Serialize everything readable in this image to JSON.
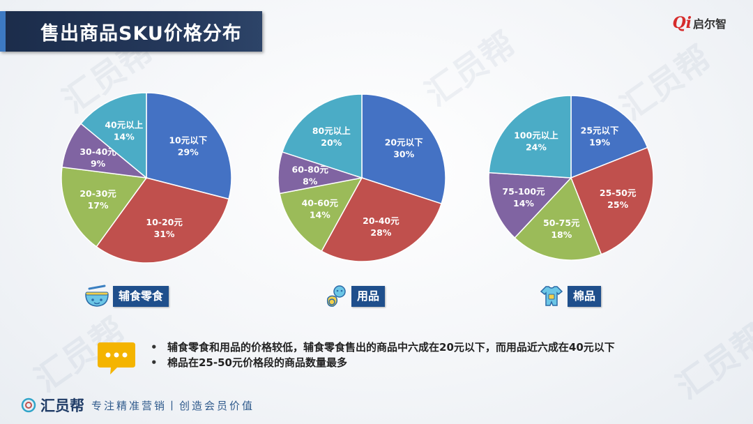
{
  "title": "售出商品SKU价格分布",
  "brand": {
    "mark": "Qi",
    "name": "启尔智"
  },
  "watermark": "汇员帮",
  "categories": [
    {
      "label": "辅食零食",
      "icon": "bowl-icon"
    },
    {
      "label": "用品",
      "icon": "pacifier-icon"
    },
    {
      "label": "棉品",
      "icon": "baby-clothes-icon"
    }
  ],
  "chart_data": [
    {
      "type": "pie",
      "title": "辅食零食",
      "slices": [
        {
          "label": "10元以下",
          "value": 29,
          "display": "29%",
          "color": "#4472c4"
        },
        {
          "label": "10-20元",
          "value": 31,
          "display": "31%",
          "color": "#c0504d"
        },
        {
          "label": "20-30元",
          "value": 17,
          "display": "17%",
          "color": "#9bbb59"
        },
        {
          "label": "30-40元",
          "value": 9,
          "display": "9%",
          "color": "#8064a2"
        },
        {
          "label": "40元以上",
          "value": 14,
          "display": "14%",
          "color": "#4bacc6"
        }
      ]
    },
    {
      "type": "pie",
      "title": "用品",
      "slices": [
        {
          "label": "20元以下",
          "value": 30,
          "display": "30%",
          "color": "#4472c4"
        },
        {
          "label": "20-40元",
          "value": 28,
          "display": "28%",
          "color": "#c0504d"
        },
        {
          "label": "40-60元",
          "value": 14,
          "display": "14%",
          "color": "#9bbb59"
        },
        {
          "label": "60-80元",
          "value": 8,
          "display": "8%",
          "color": "#8064a2"
        },
        {
          "label": "80元以上",
          "value": 20,
          "display": "20%",
          "color": "#4bacc6"
        }
      ]
    },
    {
      "type": "pie",
      "title": "棉品",
      "slices": [
        {
          "label": "25元以下",
          "value": 19,
          "display": "19%",
          "color": "#4472c4"
        },
        {
          "label": "25-50元",
          "value": 25,
          "display": "25%",
          "color": "#c0504d"
        },
        {
          "label": "50-75元",
          "value": 18,
          "display": "18%",
          "color": "#9bbb59"
        },
        {
          "label": "75-100元",
          "value": 14,
          "display": "14%",
          "color": "#8064a2"
        },
        {
          "label": "100元以上",
          "value": 24,
          "display": "24%",
          "color": "#4bacc6"
        }
      ]
    }
  ],
  "notes": [
    "辅食零食和用品的价格较低，辅食零食售出的商品中六成在20元以下，而用品近六成在40元以下",
    "棉品在25-50元价格段的商品数量最多"
  ],
  "notes_bullet": "•",
  "footer": {
    "logo": "汇员帮",
    "slogan": "专注精准营销丨创造会员价值"
  }
}
